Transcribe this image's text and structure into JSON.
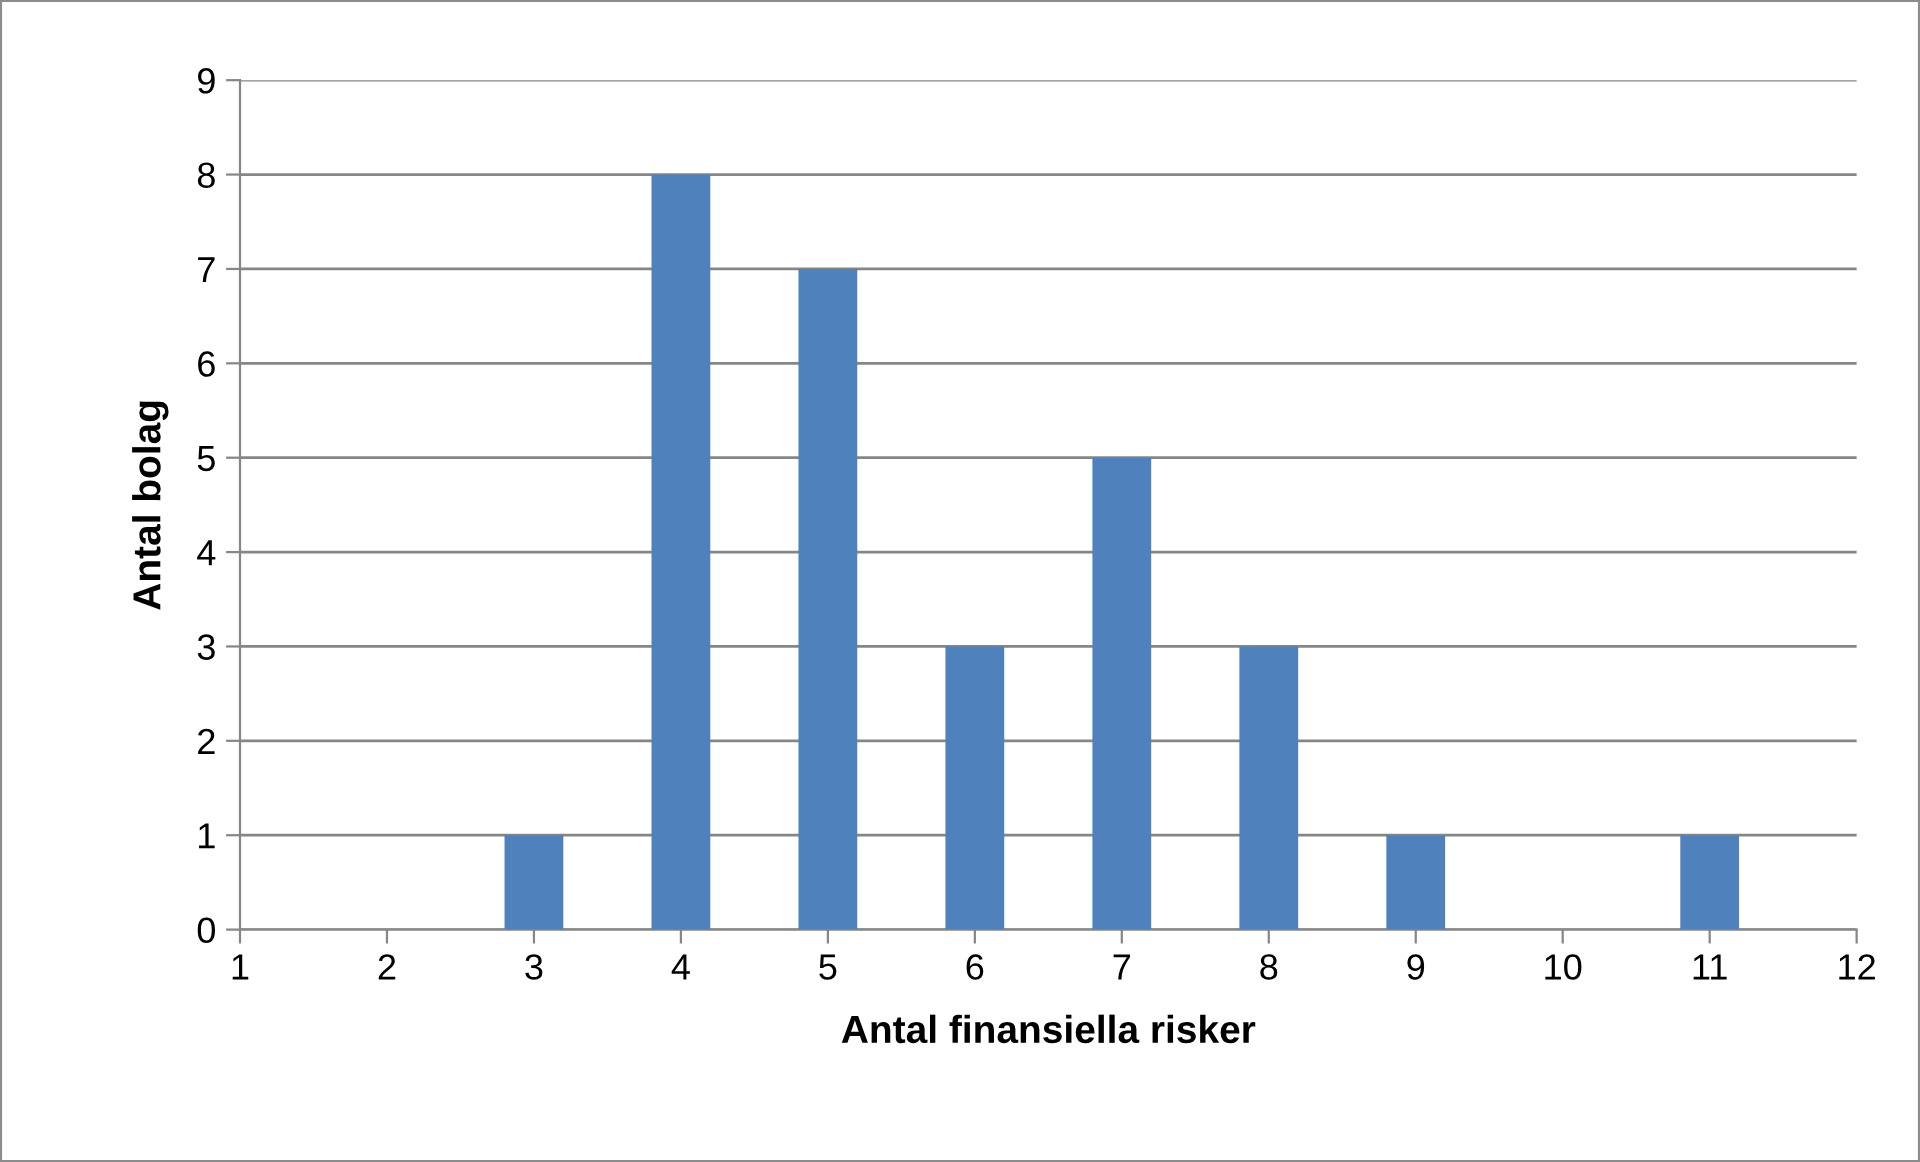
{
  "chart_data": {
    "type": "bar",
    "xlabel": "Antal finansiella risker",
    "ylabel": "Antal bolag",
    "x": [
      3,
      4,
      5,
      6,
      7,
      8,
      9,
      11
    ],
    "values": [
      1,
      8,
      7,
      3,
      5,
      3,
      1,
      1
    ],
    "color": "#4f81bd",
    "xlim": [
      1,
      12
    ],
    "xticks": [
      1,
      2,
      3,
      4,
      5,
      6,
      7,
      8,
      9,
      10,
      11,
      12
    ],
    "ylim": [
      0,
      9
    ],
    "yticks": [
      0,
      1,
      2,
      3,
      4,
      5,
      6,
      7,
      8,
      9
    ],
    "grid": "y",
    "legend": false
  }
}
